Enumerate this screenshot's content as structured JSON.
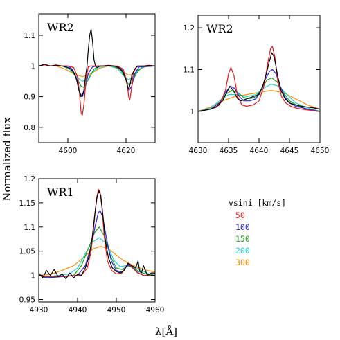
{
  "figure": {
    "ylabel": "Normalized flux",
    "xlabel": "λ[Å]",
    "legend": {
      "title": "vsini [km/s]",
      "items": [
        {
          "label": "50",
          "color": "#e41a1c"
        },
        {
          "label": "100",
          "color": "#2222dd"
        },
        {
          "label": "150",
          "color": "#1e9e1e"
        },
        {
          "label": "200",
          "color": "#22d3d3"
        },
        {
          "label": "300",
          "color": "#ff8c00"
        }
      ]
    }
  },
  "chart_data": [
    {
      "type": "line",
      "title": "WR2",
      "xlim": [
        4590,
        4630
      ],
      "ylim": [
        0.75,
        1.17
      ],
      "xticks": [
        4600,
        4620
      ],
      "yticks": [
        0.8,
        0.9,
        1,
        1.1
      ],
      "xtick_labels": [
        "4600",
        "4620"
      ],
      "ytick_labels": [
        "0.8",
        "0.9",
        "1",
        "1.1"
      ],
      "observed": {
        "color": "#000000",
        "x": [
          4590,
          4592,
          4594,
          4596,
          4598,
          4600,
          4601,
          4602,
          4603,
          4603.8,
          4604.5,
          4605,
          4605.5,
          4606,
          4606.6,
          4607,
          4607.5,
          4608,
          4608.5,
          4609,
          4609.5,
          4610,
          4611,
          4612,
          4614,
          4616,
          4617.5,
          4619,
          4620,
          4620.6,
          4621,
          4621.4,
          4622,
          4623,
          4624,
          4626,
          4628,
          4630
        ],
        "y": [
          1.0,
          1.005,
          1.0,
          1.003,
          1.0,
          0.995,
          0.99,
          0.98,
          0.955,
          0.92,
          0.9,
          0.905,
          0.92,
          0.96,
          1.0,
          1.05,
          1.1,
          1.12,
          1.08,
          1.02,
          1.0,
          0.995,
          1.0,
          1.0,
          1.002,
          1.0,
          0.995,
          0.98,
          0.955,
          0.93,
          0.925,
          0.94,
          0.97,
          0.99,
          1.0,
          1.0,
          1.002,
          1.0
        ]
      },
      "series": [
        {
          "label": "50",
          "color": "#e41a1c",
          "x": [
            4590,
            4600,
            4602,
            4603.5,
            4604.2,
            4604.6,
            4605,
            4605.6,
            4606.3,
            4607,
            4608,
            4610,
            4617,
            4619,
            4620.3,
            4620.9,
            4621.3,
            4621.8,
            4622.5,
            4623.5,
            4625,
            4630
          ],
          "y": [
            1.0,
            1.0,
            0.995,
            0.96,
            0.89,
            0.845,
            0.84,
            0.88,
            0.96,
            0.997,
            1.0,
            1.0,
            1.0,
            0.99,
            0.95,
            0.9,
            0.89,
            0.92,
            0.975,
            0.997,
            1.0,
            1.0
          ]
        },
        {
          "label": "100",
          "color": "#2222dd",
          "x": [
            4590,
            4600,
            4601.5,
            4603,
            4604,
            4605,
            4606,
            4607,
            4608.5,
            4610,
            4616,
            4618.5,
            4620,
            4621,
            4622,
            4623,
            4624.5,
            4630
          ],
          "y": [
            1.0,
            1.0,
            0.99,
            0.96,
            0.915,
            0.9,
            0.93,
            0.975,
            0.997,
            1.0,
            1.0,
            0.99,
            0.955,
            0.92,
            0.935,
            0.975,
            0.997,
            1.0
          ]
        },
        {
          "label": "150",
          "color": "#1e9e1e",
          "x": [
            4590,
            4599,
            4601,
            4603,
            4604.5,
            4605.5,
            4607,
            4609,
            4611,
            4615,
            4618,
            4619.5,
            4620.8,
            4622,
            4623.5,
            4625.5,
            4630
          ],
          "y": [
            1.0,
            1.0,
            0.99,
            0.96,
            0.935,
            0.93,
            0.955,
            0.99,
            1.0,
            1.0,
            0.99,
            0.965,
            0.94,
            0.945,
            0.975,
            0.997,
            1.0
          ]
        },
        {
          "label": "200",
          "color": "#22d3d3",
          "x": [
            4590,
            4598,
            4600.5,
            4603,
            4605,
            4607,
            4609,
            4611,
            4614,
            4617,
            4619,
            4620.8,
            4622.5,
            4624.5,
            4627,
            4630
          ],
          "y": [
            1.0,
            1.0,
            0.99,
            0.965,
            0.95,
            0.96,
            0.985,
            0.997,
            1.0,
            0.993,
            0.97,
            0.955,
            0.965,
            0.99,
            1.0,
            1.0
          ]
        },
        {
          "label": "300",
          "color": "#ff8c00",
          "x": [
            4590,
            4596,
            4599,
            4602,
            4605,
            4608,
            4611,
            4614,
            4617,
            4619,
            4621,
            4623,
            4625,
            4627,
            4630
          ],
          "y": [
            1.0,
            1.0,
            0.99,
            0.975,
            0.965,
            0.975,
            0.993,
            1.0,
            0.993,
            0.98,
            0.97,
            0.975,
            0.99,
            0.999,
            1.0
          ]
        }
      ]
    },
    {
      "type": "line",
      "title": "WR2",
      "xlim": [
        4630,
        4650
      ],
      "ylim": [
        0.925,
        1.23
      ],
      "xticks": [
        4630,
        4635,
        4640,
        4645,
        4650
      ],
      "yticks": [
        1,
        1.1,
        1.2
      ],
      "xtick_labels": [
        "4630",
        "4635",
        "4640",
        "4645",
        "4650"
      ],
      "ytick_labels": [
        "1",
        "1.1",
        "1.2"
      ],
      "observed": {
        "color": "#000000",
        "x": [
          4630,
          4631,
          4632,
          4633,
          4634,
          4634.7,
          4635.2,
          4635.8,
          4636.5,
          4637,
          4638,
          4639,
          4640,
          4640.6,
          4641.2,
          4641.7,
          4642.1,
          4642.5,
          4643,
          4643.6,
          4644.3,
          4645,
          4646,
          4647,
          4648,
          4649,
          4650
        ],
        "y": [
          1.0,
          1.002,
          1.005,
          1.01,
          1.025,
          1.045,
          1.06,
          1.05,
          1.03,
          1.025,
          1.03,
          1.035,
          1.04,
          1.06,
          1.09,
          1.12,
          1.14,
          1.13,
          1.09,
          1.05,
          1.03,
          1.02,
          1.015,
          1.012,
          1.01,
          1.008,
          1.005
        ]
      },
      "series": [
        {
          "label": "50",
          "color": "#e41a1c",
          "x": [
            4630,
            4632,
            4633.5,
            4634.5,
            4635,
            4635.4,
            4635.9,
            4636.5,
            4637.2,
            4638,
            4639,
            4640,
            4640.8,
            4641.5,
            4641.9,
            4642.2,
            4642.6,
            4643.1,
            4643.7,
            4644.4,
            4645.2,
            4646,
            4647,
            4648,
            4650
          ],
          "y": [
            1.0,
            1.005,
            1.015,
            1.05,
            1.09,
            1.105,
            1.085,
            1.035,
            1.015,
            1.012,
            1.015,
            1.025,
            1.06,
            1.12,
            1.15,
            1.155,
            1.13,
            1.07,
            1.035,
            1.02,
            1.012,
            1.008,
            1.005,
            1.003,
            1.0
          ]
        },
        {
          "label": "100",
          "color": "#2222dd",
          "x": [
            4630,
            4632,
            4633.5,
            4634.5,
            4635.3,
            4636,
            4636.8,
            4637.5,
            4638.5,
            4639.5,
            4640.3,
            4641,
            4641.7,
            4642.2,
            4642.8,
            4643.5,
            4644.2,
            4645,
            4646,
            4648,
            4650
          ],
          "y": [
            1.0,
            1.005,
            1.02,
            1.045,
            1.06,
            1.055,
            1.035,
            1.025,
            1.025,
            1.03,
            1.05,
            1.075,
            1.095,
            1.1,
            1.09,
            1.06,
            1.035,
            1.02,
            1.012,
            1.005,
            1.0
          ]
        },
        {
          "label": "150",
          "color": "#1e9e1e",
          "x": [
            4630,
            4632,
            4633.5,
            4634.5,
            4635.5,
            4636.5,
            4637.5,
            4638.5,
            4639.5,
            4640.5,
            4641.3,
            4642.1,
            4643,
            4644,
            4645,
            4646.5,
            4648,
            4650
          ],
          "y": [
            1.0,
            1.005,
            1.02,
            1.04,
            1.05,
            1.045,
            1.033,
            1.03,
            1.035,
            1.055,
            1.075,
            1.08,
            1.07,
            1.045,
            1.025,
            1.012,
            1.005,
            1.0
          ]
        },
        {
          "label": "200",
          "color": "#22d3d3",
          "x": [
            4630,
            4632,
            4633.5,
            4635,
            4636.5,
            4638,
            4639.5,
            4640.7,
            4642,
            4643.3,
            4644.6,
            4646,
            4648,
            4650
          ],
          "y": [
            1.0,
            1.008,
            1.025,
            1.04,
            1.04,
            1.035,
            1.04,
            1.055,
            1.065,
            1.06,
            1.04,
            1.02,
            1.008,
            1.0
          ]
        },
        {
          "label": "300",
          "color": "#ff8c00",
          "x": [
            4630,
            4632,
            4634,
            4636,
            4638,
            4640,
            4642,
            4644,
            4646,
            4648,
            4650
          ],
          "y": [
            1.0,
            1.01,
            1.025,
            1.035,
            1.04,
            1.045,
            1.05,
            1.045,
            1.03,
            1.015,
            1.005
          ]
        }
      ]
    },
    {
      "type": "line",
      "title": "WR1",
      "xlim": [
        4930,
        4960
      ],
      "ylim": [
        0.945,
        1.2
      ],
      "xticks": [
        4930,
        4940,
        4950,
        4960
      ],
      "yticks": [
        0.95,
        1,
        1.05,
        1.1,
        1.15,
        1.2
      ],
      "xtick_labels": [
        "4930",
        "4940",
        "4950",
        "4960"
      ],
      "ytick_labels": [
        "0.95",
        "1",
        "1.05",
        "1.1",
        "1.15",
        "1.2"
      ],
      "observed": {
        "color": "#000000",
        "x": [
          4930,
          4931,
          4932,
          4933,
          4934,
          4935,
          4936,
          4937,
          4938,
          4939,
          4940,
          4941,
          4942,
          4943,
          4943.8,
          4944.5,
          4945,
          4945.5,
          4946,
          4946.6,
          4947.2,
          4948,
          4949,
          4950,
          4951,
          4952,
          4953,
          4954,
          4955,
          4955.6,
          4956,
          4956.5,
          4957,
          4958,
          4959,
          4960
        ],
        "y": [
          1.005,
          0.995,
          1.01,
          1.0,
          1.012,
          0.997,
          1.003,
          0.993,
          1.005,
          0.995,
          1.002,
          1.0,
          1.015,
          1.04,
          1.08,
          1.13,
          1.16,
          1.175,
          1.165,
          1.12,
          1.07,
          1.035,
          1.015,
          1.008,
          1.005,
          1.01,
          1.025,
          1.02,
          1.015,
          1.03,
          1.01,
          1.005,
          1.02,
          1.0,
          1.005,
          1.005
        ]
      },
      "series": [
        {
          "label": "50",
          "color": "#e41a1c",
          "x": [
            4930,
            4932,
            4941,
            4942.5,
            4943.5,
            4944.3,
            4944.9,
            4945.4,
            4945.8,
            4946.3,
            4946.9,
            4947.7,
            4948.8,
            4950,
            4951.5,
            4952.5,
            4953.3,
            4954.2,
            4955.5,
            4957,
            4960
          ],
          "y": [
            1.0,
            0.997,
            1.0,
            1.015,
            1.05,
            1.11,
            1.16,
            1.178,
            1.172,
            1.14,
            1.08,
            1.03,
            1.01,
            1.003,
            1.005,
            1.018,
            1.025,
            1.015,
            1.005,
            1.0,
            1.0
          ]
        },
        {
          "label": "100",
          "color": "#2222dd",
          "x": [
            4930,
            4932,
            4940,
            4942,
            4943.5,
            4944.5,
            4945.3,
            4945.8,
            4946.5,
            4947.5,
            4948.7,
            4950,
            4951.5,
            4952.5,
            4953.3,
            4954.3,
            4955.5,
            4957,
            4960
          ],
          "y": [
            1.0,
            0.995,
            1.0,
            1.02,
            1.06,
            1.1,
            1.128,
            1.135,
            1.12,
            1.075,
            1.03,
            1.01,
            1.006,
            1.017,
            1.022,
            1.015,
            1.006,
            1.0,
            1.0
          ]
        },
        {
          "label": "150",
          "color": "#1e9e1e",
          "x": [
            4930,
            4932,
            4939,
            4941,
            4943,
            4944.5,
            4945.6,
            4947,
            4948.5,
            4950,
            4951.5,
            4953,
            4954.5,
            4956,
            4958,
            4960
          ],
          "y": [
            1.0,
            0.995,
            1.0,
            1.02,
            1.06,
            1.09,
            1.1,
            1.08,
            1.04,
            1.015,
            1.012,
            1.02,
            1.015,
            1.007,
            1.002,
            1.0
          ]
        },
        {
          "label": "200",
          "color": "#22d3d3",
          "x": [
            4930,
            4932,
            4938,
            4940,
            4942,
            4944,
            4945.6,
            4947.5,
            4949.5,
            4951,
            4952.5,
            4954.5,
            4956.5,
            4958.5,
            4960
          ],
          "y": [
            1.0,
            0.997,
            1.003,
            1.015,
            1.045,
            1.07,
            1.078,
            1.065,
            1.03,
            1.018,
            1.02,
            1.018,
            1.01,
            1.003,
            1.0
          ]
        },
        {
          "label": "300",
          "color": "#ff8c00",
          "x": [
            4930,
            4933,
            4936,
            4939,
            4942,
            4944,
            4946,
            4948,
            4950,
            4952,
            4954,
            4956,
            4958,
            4960
          ],
          "y": [
            1.0,
            1.002,
            1.01,
            1.02,
            1.04,
            1.055,
            1.06,
            1.055,
            1.042,
            1.03,
            1.022,
            1.015,
            1.01,
            1.007
          ]
        }
      ]
    }
  ]
}
